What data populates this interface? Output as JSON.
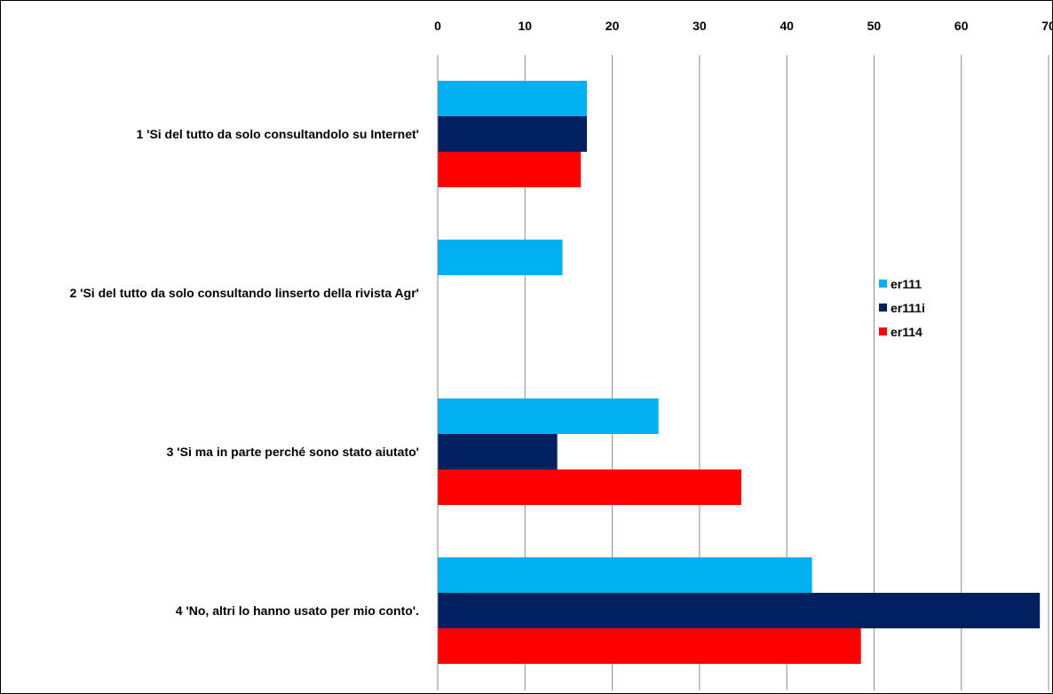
{
  "chart_data": {
    "type": "bar",
    "orientation": "horizontal",
    "title": "",
    "xlabel": "",
    "ylabel": "",
    "xlim": [
      0,
      70
    ],
    "x_ticks": [
      "0",
      "10",
      "20",
      "30",
      "40",
      "50",
      "60",
      "70"
    ],
    "grid": "vertical",
    "legend": "right",
    "categories": [
      "1 'Si del tutto da solo consultandolo su Internet'",
      "2 'Si del tutto da solo consultando linserto della rivista Agr'",
      "3 'Si ma in parte perché sono stato aiutato'",
      "4 'No, altri lo hanno usato per mio conto'."
    ],
    "series": [
      {
        "name": "er111",
        "color": "#00B0F0",
        "values": [
          17.1,
          14.3,
          25.3,
          42.9
        ]
      },
      {
        "name": "er111i",
        "color": "#002060",
        "values": [
          17.1,
          0,
          13.7,
          69.0
        ]
      },
      {
        "name": "er114",
        "color": "#FF0000",
        "values": [
          16.4,
          0,
          34.8,
          48.5
        ]
      }
    ]
  }
}
